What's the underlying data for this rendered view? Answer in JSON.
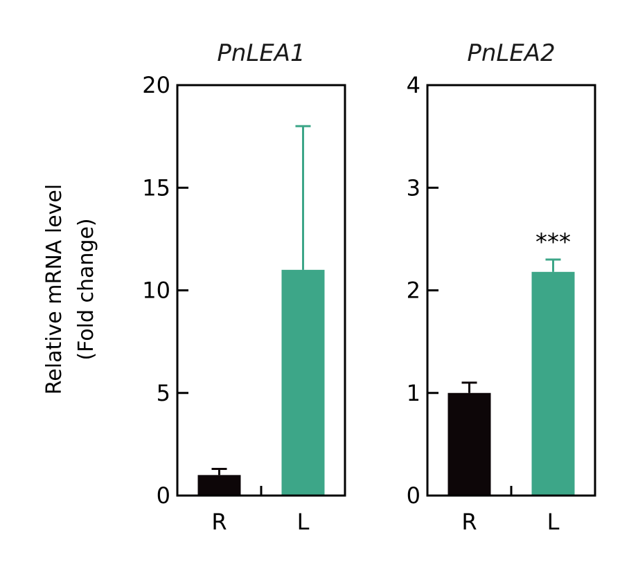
{
  "ylabel_line1": "Relative mRNA level",
  "ylabel_line2": "(Fold change)",
  "colors": {
    "R": "#0d0608",
    "L": "#3da688",
    "axis": "#000000"
  },
  "chart_data": [
    {
      "type": "bar",
      "title": "PnLEA1",
      "categories": [
        "R",
        "L"
      ],
      "values": [
        1.0,
        11.0
      ],
      "error_upper": [
        0.3,
        7.0
      ],
      "ylim": [
        0,
        20
      ],
      "yticks": [
        0,
        5,
        10,
        15,
        20
      ],
      "significance": [
        "",
        ""
      ]
    },
    {
      "type": "bar",
      "title": "PnLEA2",
      "categories": [
        "R",
        "L"
      ],
      "values": [
        1.0,
        2.18
      ],
      "error_upper": [
        0.1,
        0.12
      ],
      "ylim": [
        0,
        4
      ],
      "yticks": [
        0,
        1,
        2,
        3,
        4
      ],
      "significance": [
        "",
        "***"
      ]
    }
  ]
}
